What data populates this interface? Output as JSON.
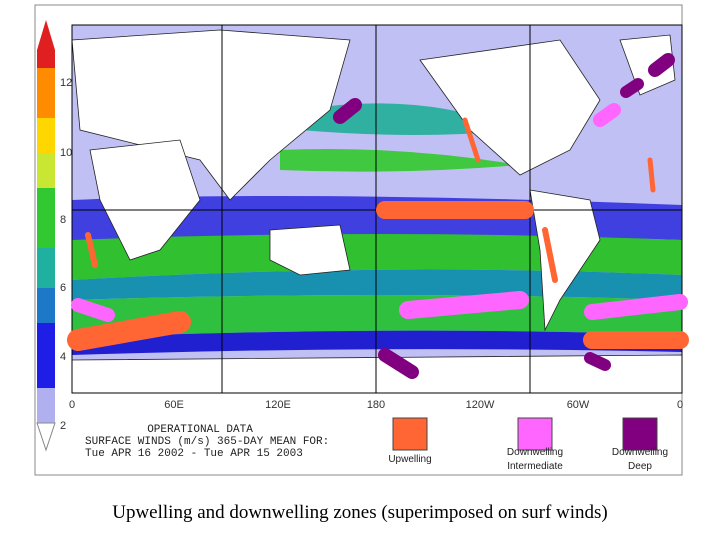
{
  "colorbar": {
    "ticks": [
      "12",
      "10",
      "8",
      "6",
      "4",
      "2"
    ]
  },
  "map": {
    "lon_labels": [
      "0",
      "60E",
      "120E",
      "180",
      "120W",
      "60W",
      "0"
    ],
    "info": [
      "OPERATIONAL DATA",
      "SURFACE WINDS (m/s)   365-DAY MEAN FOR:",
      "Tue APR 16 2002 - Tue APR 15 2003"
    ]
  },
  "legend": [
    {
      "lines": [
        "Upwelling"
      ],
      "color": "#ff6633"
    },
    {
      "lines": [
        "Downwelling",
        "Intermediate"
      ],
      "color": "#ff66ff"
    },
    {
      "lines": [
        "Downwelling",
        "Deep"
      ],
      "color": "#800080"
    }
  ],
  "caption": "Upwelling and downwelling zones (superimposed on surf winds)"
}
